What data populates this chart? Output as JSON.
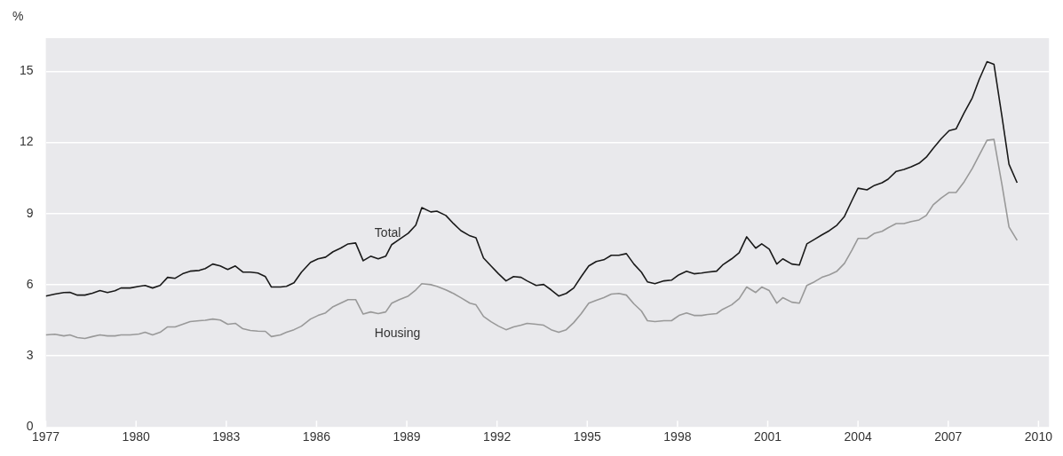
{
  "chart_data": {
    "type": "line",
    "ylabel": "%",
    "xlim": [
      1977,
      2010.35
    ],
    "xticks": [
      1977,
      1980,
      1983,
      1986,
      1989,
      1992,
      1995,
      1998,
      2001,
      2004,
      2007,
      2010
    ],
    "ylim": [
      0,
      16.4
    ],
    "yticks": [
      0,
      3,
      6,
      9,
      12,
      15
    ],
    "grid": "y",
    "legend": false,
    "marker": "none",
    "line_style": "solid",
    "x": [
      1977.0,
      1977.3,
      1977.6,
      1977.8,
      1978.05,
      1978.3,
      1978.55,
      1978.8,
      1979.05,
      1979.3,
      1979.5,
      1979.8,
      1980.1,
      1980.3,
      1980.55,
      1980.8,
      1981.05,
      1981.3,
      1981.55,
      1981.8,
      1982.1,
      1982.3,
      1982.55,
      1982.8,
      1983.05,
      1983.3,
      1983.55,
      1983.8,
      1984.05,
      1984.3,
      1984.5,
      1984.8,
      1985.0,
      1985.25,
      1985.5,
      1985.8,
      1986.05,
      1986.3,
      1986.55,
      1986.8,
      1987.05,
      1987.3,
      1987.55,
      1987.8,
      1988.05,
      1988.3,
      1988.5,
      1988.75,
      1989.05,
      1989.3,
      1989.5,
      1989.8,
      1990.0,
      1990.3,
      1990.55,
      1990.8,
      1991.1,
      1991.3,
      1991.55,
      1991.8,
      1992.05,
      1992.3,
      1992.55,
      1992.8,
      1993.0,
      1993.3,
      1993.55,
      1993.8,
      1994.05,
      1994.3,
      1994.55,
      1994.8,
      1995.05,
      1995.3,
      1995.55,
      1995.8,
      1996.05,
      1996.3,
      1996.55,
      1996.8,
      1997.0,
      1997.25,
      1997.55,
      1997.8,
      1998.05,
      1998.3,
      1998.55,
      1998.8,
      1999.0,
      1999.3,
      1999.5,
      1999.8,
      2000.05,
      2000.3,
      2000.6,
      2000.8,
      2001.05,
      2001.3,
      2001.5,
      2001.8,
      2002.05,
      2002.3,
      2002.55,
      2002.8,
      2003.05,
      2003.3,
      2003.55,
      2003.8,
      2004.0,
      2004.3,
      2004.55,
      2004.8,
      2005.0,
      2005.27,
      2005.53,
      2005.77,
      2006.03,
      2006.27,
      2006.5,
      2006.77,
      2007.03,
      2007.26,
      2007.53,
      2007.8,
      2008.03,
      2008.29,
      2008.52,
      2008.79,
      2009.02,
      2009.29
    ],
    "series": [
      {
        "name": "Total",
        "color": "#1a1a1a",
        "values": [
          5.52,
          5.6,
          5.67,
          5.68,
          5.56,
          5.56,
          5.64,
          5.75,
          5.67,
          5.74,
          5.86,
          5.86,
          5.93,
          5.97,
          5.86,
          5.97,
          6.31,
          6.27,
          6.46,
          6.57,
          6.6,
          6.68,
          6.87,
          6.79,
          6.64,
          6.79,
          6.53,
          6.53,
          6.49,
          6.34,
          5.9,
          5.9,
          5.93,
          6.08,
          6.53,
          6.94,
          7.09,
          7.16,
          7.39,
          7.54,
          7.72,
          7.76,
          7.01,
          7.2,
          7.09,
          7.2,
          7.69,
          7.91,
          8.17,
          8.51,
          9.25,
          9.07,
          9.1,
          8.92,
          8.58,
          8.28,
          8.06,
          7.98,
          7.13,
          6.79,
          6.46,
          6.16,
          6.34,
          6.31,
          6.16,
          5.97,
          6.01,
          5.78,
          5.52,
          5.63,
          5.86,
          6.34,
          6.79,
          6.98,
          7.05,
          7.24,
          7.24,
          7.31,
          6.87,
          6.53,
          6.12,
          6.04,
          6.16,
          6.19,
          6.42,
          6.57,
          6.46,
          6.49,
          6.53,
          6.57,
          6.83,
          7.09,
          7.35,
          8.02,
          7.54,
          7.72,
          7.5,
          6.87,
          7.09,
          6.87,
          6.83,
          7.72,
          7.91,
          8.1,
          8.28,
          8.51,
          8.88,
          9.55,
          10.07,
          10.0,
          10.19,
          10.3,
          10.45,
          10.78,
          10.86,
          10.97,
          11.12,
          11.38,
          11.75,
          12.16,
          12.5,
          12.57,
          13.25,
          13.88,
          14.66,
          15.41,
          15.3,
          13.06,
          11.08,
          10.3
        ]
      },
      {
        "name": "Housing",
        "color": "#999999",
        "values": [
          3.88,
          3.91,
          3.84,
          3.88,
          3.77,
          3.73,
          3.81,
          3.88,
          3.84,
          3.84,
          3.88,
          3.88,
          3.92,
          3.99,
          3.88,
          3.99,
          4.22,
          4.22,
          4.33,
          4.44,
          4.48,
          4.5,
          4.55,
          4.51,
          4.33,
          4.37,
          4.14,
          4.07,
          4.04,
          4.03,
          3.81,
          3.88,
          3.99,
          4.1,
          4.25,
          4.55,
          4.7,
          4.81,
          5.07,
          5.22,
          5.37,
          5.37,
          4.76,
          4.85,
          4.78,
          4.85,
          5.22,
          5.37,
          5.52,
          5.78,
          6.04,
          6.0,
          5.93,
          5.78,
          5.63,
          5.45,
          5.22,
          5.15,
          4.66,
          4.44,
          4.25,
          4.1,
          4.22,
          4.29,
          4.37,
          4.33,
          4.29,
          4.1,
          3.99,
          4.1,
          4.4,
          4.78,
          5.22,
          5.34,
          5.45,
          5.6,
          5.63,
          5.56,
          5.19,
          4.89,
          4.48,
          4.44,
          4.48,
          4.48,
          4.7,
          4.81,
          4.7,
          4.7,
          4.74,
          4.78,
          4.96,
          5.15,
          5.41,
          5.9,
          5.67,
          5.9,
          5.75,
          5.22,
          5.45,
          5.26,
          5.22,
          5.97,
          6.12,
          6.31,
          6.42,
          6.57,
          6.9,
          7.46,
          7.95,
          7.95,
          8.17,
          8.25,
          8.4,
          8.58,
          8.58,
          8.66,
          8.73,
          8.92,
          9.37,
          9.66,
          9.89,
          9.89,
          10.34,
          10.9,
          11.46,
          12.09,
          12.13,
          10.19,
          8.43,
          7.87
        ]
      }
    ]
  }
}
